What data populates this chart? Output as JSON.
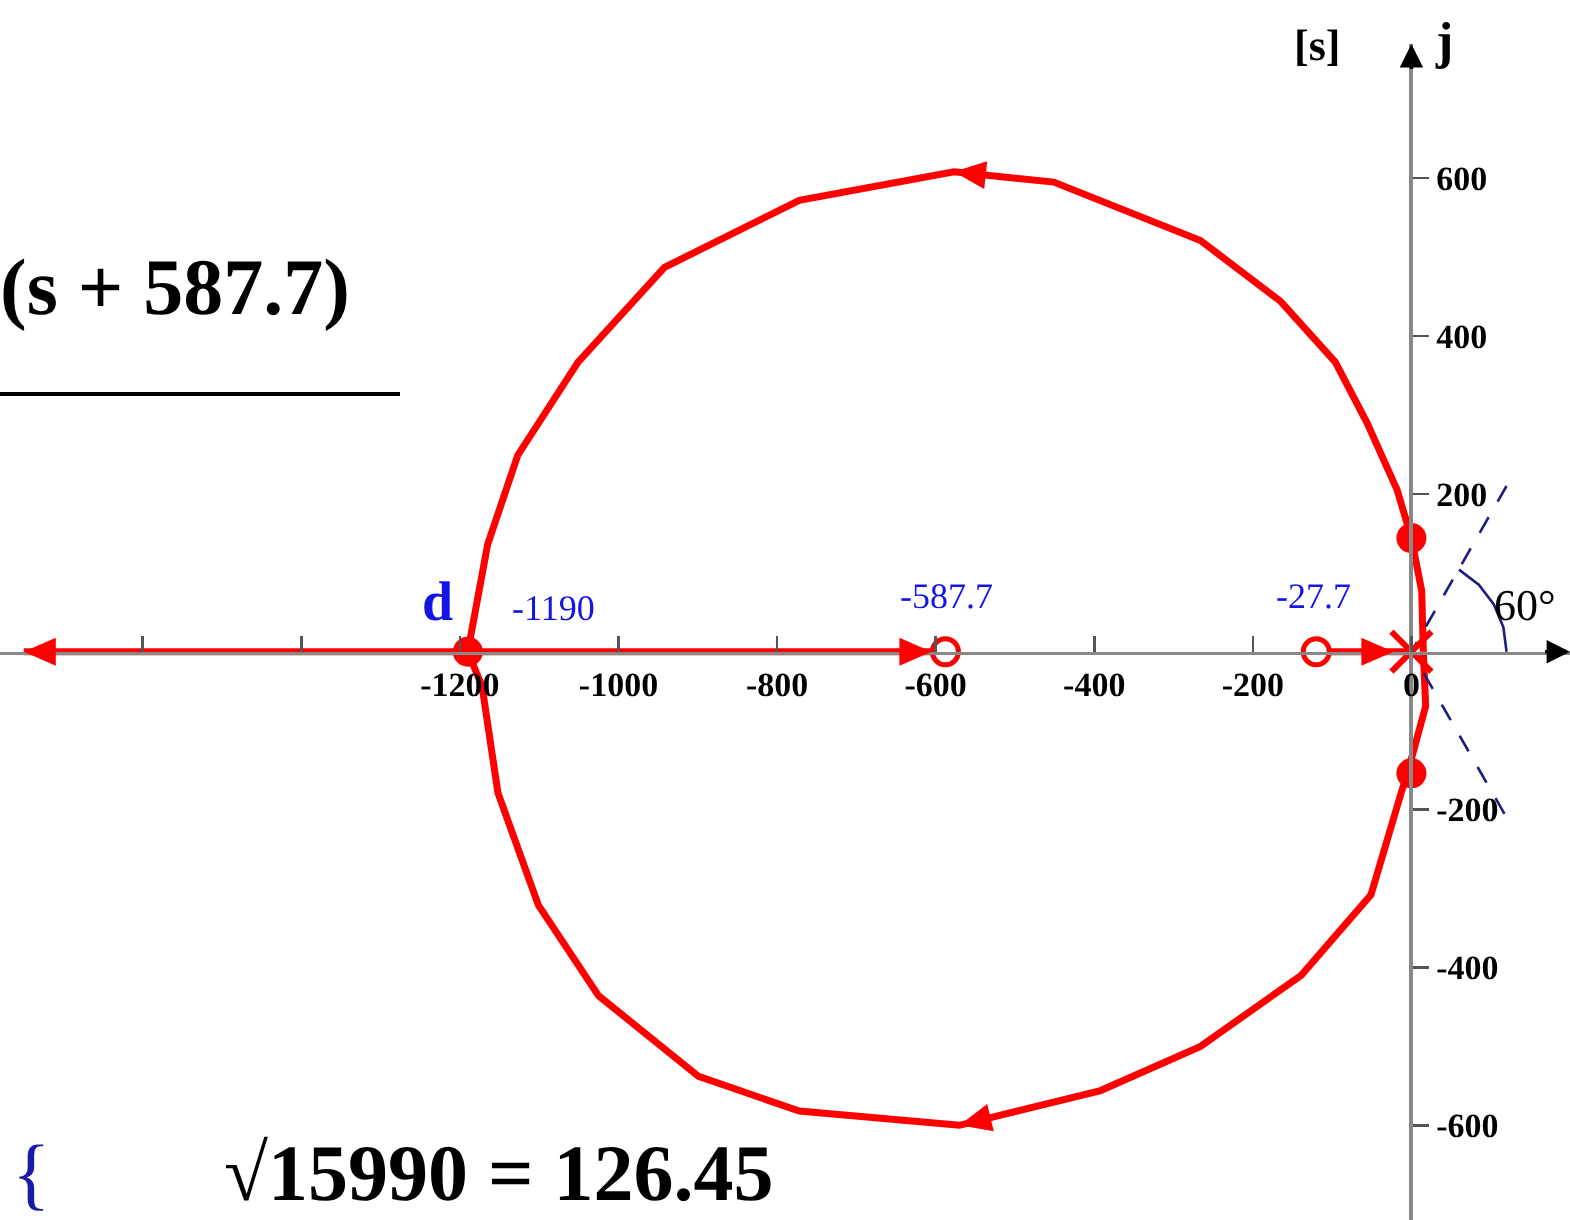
{
  "chart_data": {
    "type": "line",
    "ylabel": "j",
    "annotations": [
      "(s + 587.7)",
      "[s]",
      "d",
      "-1190",
      "-587.7",
      "-27.7",
      "60°",
      "{",
      "√15990 = 126.45"
    ],
    "xlim": [
      -1780,
      200
    ],
    "ylim": [
      -720,
      770
    ],
    "xticks": [
      {
        "value": -1600,
        "label": null
      },
      {
        "value": -1400,
        "label": null
      },
      -1200,
      -1000,
      -800,
      -600,
      -400,
      -200,
      0
    ],
    "yticks": [
      -600,
      -400,
      -200,
      200,
      400,
      600
    ],
    "grid": false,
    "line_style": "solid",
    "series": [
      {
        "color": "#ff0000",
        "x": [
          15,
          13,
          0,
          -18,
          -56,
          -96,
          -165,
          -266,
          -451,
          -577,
          -772,
          -942,
          -1051,
          -1127,
          -1165,
          -1190,
          -1750
        ],
        "values": [
          0,
          77,
          144,
          205,
          290,
          367,
          444,
          521,
          595,
          608,
          572,
          487,
          367,
          249,
          136,
          0,
          0
        ]
      },
      {
        "color": "#ff0000",
        "x": [
          15,
          18,
          -5,
          -13,
          -51,
          -139,
          -266,
          -392,
          -570,
          -772,
          -899,
          -1025,
          -1101,
          -1152,
          -1172,
          -1190,
          -587.7
        ],
        "values": [
          0,
          -69,
          -154,
          -179,
          -308,
          -410,
          -500,
          -556,
          -600,
          -582,
          -538,
          -436,
          -321,
          -179,
          -44,
          0,
          0
        ]
      },
      {
        "color": "#ff0000",
        "x": [
          -120,
          0
        ],
        "values": [
          0,
          0
        ]
      },
      {
        "color": "#1c1c80",
        "line_style": "dashed",
        "x": [
          120,
          0,
          120
        ],
        "values": [
          210,
          0,
          -210
        ]
      },
      {
        "color": "#1c1c80",
        "x": [
          120,
          116,
          104,
          85,
          60
        ],
        "values": [
          0,
          31,
          60,
          85,
          104
        ]
      },
      {
        "type": "scatter",
        "color": "#ff0000",
        "marker": "circle-open",
        "x": [
          -587.7,
          -120
        ],
        "values": [
          0,
          0
        ]
      },
      {
        "type": "scatter",
        "color": "#ff0000",
        "marker": "cross",
        "x": [
          0
        ],
        "values": [
          0
        ]
      },
      {
        "type": "scatter",
        "color": "#ff0000",
        "marker": "circle",
        "x": [
          -1190,
          0,
          0
        ],
        "values": [
          0,
          144,
          -154
        ]
      }
    ]
  }
}
